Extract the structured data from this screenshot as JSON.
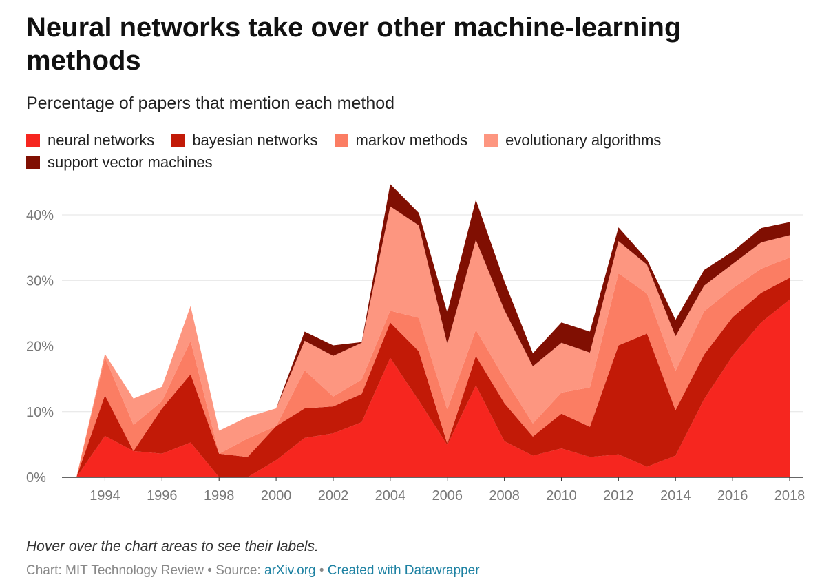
{
  "title": "Neural networks take over other machine-learning methods",
  "subtitle": "Percentage of papers that mention each method",
  "note": "Hover over the chart areas to see their labels.",
  "credit": {
    "prefix": "Chart: MIT Technology Review • Source: ",
    "source_link": "arXiv.org",
    "separator": " • ",
    "created_link": "Created with Datawrapper"
  },
  "chart_data": {
    "type": "area",
    "stacked": true,
    "x": [
      1993,
      1994,
      1995,
      1996,
      1997,
      1998,
      1999,
      2000,
      2001,
      2002,
      2003,
      2004,
      2005,
      2006,
      2007,
      2008,
      2009,
      2010,
      2011,
      2012,
      2013,
      2014,
      2015,
      2016,
      2017,
      2018
    ],
    "x_ticks": [
      "1994",
      "1996",
      "1998",
      "2000",
      "2002",
      "2004",
      "2006",
      "2008",
      "2010",
      "2012",
      "2014",
      "2016",
      "2018"
    ],
    "y_ticks": [
      "0%",
      "10%",
      "20%",
      "30%",
      "40%"
    ],
    "ylim": [
      0,
      45
    ],
    "grid": true,
    "legend_position": "top-left",
    "series": [
      {
        "name": "neural networks",
        "color": "#f6261f",
        "values": [
          0,
          6.3,
          4,
          3.6,
          5.3,
          0,
          0,
          2.6,
          6,
          6.7,
          8.4,
          18.2,
          11.7,
          4.9,
          14,
          5.5,
          3.3,
          4.4,
          3.1,
          3.5,
          1.6,
          3.3,
          11.9,
          18.5,
          23.6,
          27.1
        ]
      },
      {
        "name": "bayesian networks",
        "color": "#c21a07",
        "values": [
          0,
          6.2,
          0,
          6.9,
          10.4,
          3.6,
          3.1,
          5.2,
          4.5,
          4.1,
          4.3,
          5.4,
          7.5,
          0.2,
          4.5,
          5.8,
          2.9,
          5.3,
          4.6,
          16.6,
          20.3,
          6.9,
          6.8,
          5.9,
          4.5,
          3.3
        ]
      },
      {
        "name": "markov methods",
        "color": "#fb7d63",
        "values": [
          0,
          5.8,
          4,
          1.1,
          5.1,
          0,
          2.8,
          0,
          5.8,
          1.5,
          2.2,
          1.8,
          5.1,
          5.2,
          4,
          3.8,
          2,
          3.2,
          6,
          11,
          6.1,
          6,
          6.6,
          4.4,
          3.7,
          3.1
        ]
      },
      {
        "name": "evolutionary algorithms",
        "color": "#fd9680",
        "values": [
          0,
          0.5,
          4,
          2.2,
          5.3,
          3.5,
          3.3,
          2.7,
          4.5,
          6.2,
          5.6,
          15.9,
          14.1,
          10,
          13.7,
          10.4,
          8.7,
          7.6,
          5.3,
          4.9,
          4.4,
          5.3,
          3.9,
          3.7,
          4,
          3.4
        ]
      },
      {
        "name": "support vector machines",
        "color": "#800f02",
        "values": [
          0,
          0,
          0,
          0,
          0,
          0,
          0,
          0,
          1.4,
          1.6,
          0.1,
          3.4,
          1.9,
          4.8,
          6.1,
          4.4,
          2,
          3.1,
          3.2,
          2.1,
          0.8,
          2.5,
          2.4,
          1.9,
          2.2,
          2
        ]
      }
    ]
  }
}
